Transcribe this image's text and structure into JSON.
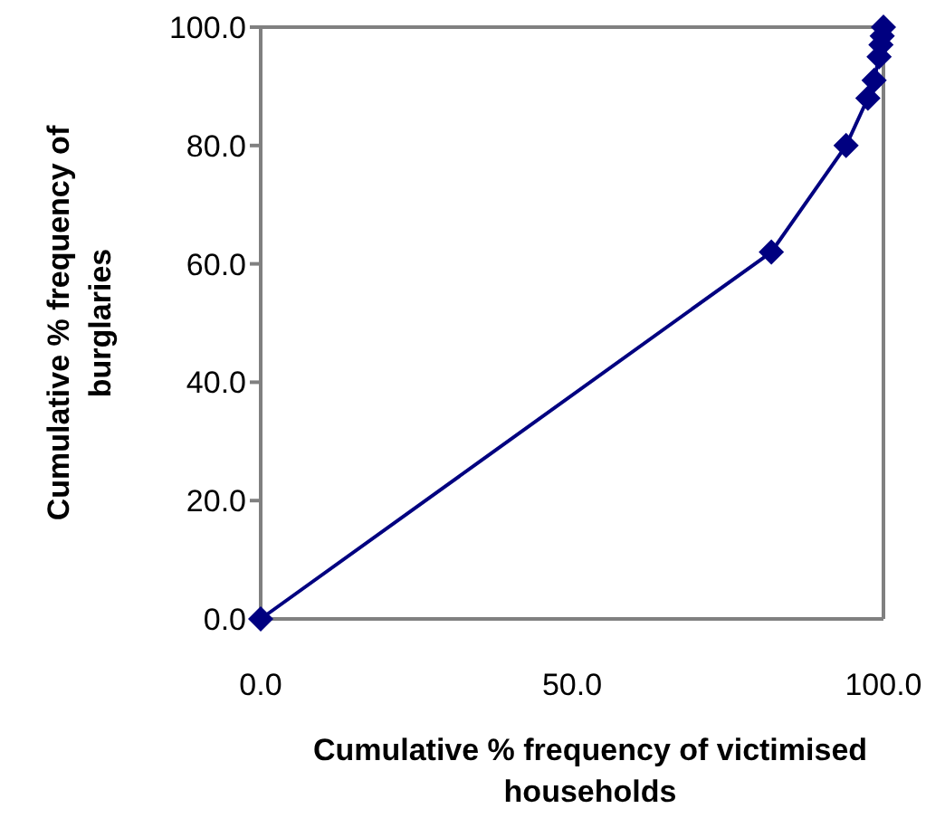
{
  "chart_data": {
    "type": "line",
    "xlabel": "Cumulative % frequency of victimised households",
    "ylabel": "Cumulative % frequency of burglaries",
    "x": [
      0,
      82,
      94,
      97.5,
      98.5,
      99.3,
      99.6,
      99.8,
      100
    ],
    "series": [
      {
        "color": "#000080",
        "values": [
          0,
          62,
          80,
          88,
          91,
          95,
          97,
          98.5,
          100
        ]
      }
    ],
    "xlim": [
      0,
      100
    ],
    "xticks": [
      {
        "value": 0,
        "label": "0.0"
      },
      {
        "value": 50,
        "label": "50.0"
      },
      {
        "value": 100,
        "label": "100.0"
      }
    ],
    "ylim": [
      0,
      100
    ],
    "yticks": [
      {
        "value": 0,
        "label": "0.0"
      },
      {
        "value": 20,
        "label": "20.0"
      },
      {
        "value": 40,
        "label": "40.0"
      },
      {
        "value": 60,
        "label": "60.0"
      },
      {
        "value": 80,
        "label": "80.0"
      },
      {
        "value": 100,
        "label": "100.0"
      }
    ],
    "marker": "diamond",
    "line_style": "solid",
    "grid": false
  }
}
